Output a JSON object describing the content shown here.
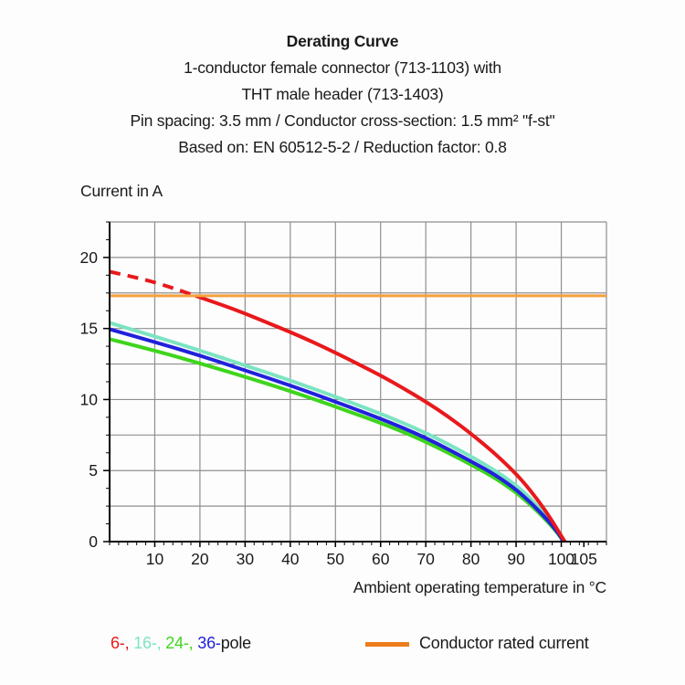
{
  "header": {
    "lines": [
      "Derating Curve",
      "1-conductor female connector (713-1103) with",
      "THT male header (713-1403)",
      "Pin spacing: 3.5 mm / Conductor cross-section: 1.5 mm² \"f-st\"",
      "Based on: EN 60512-5-2 / Reduction factor: 0.8"
    ]
  },
  "chart_data": {
    "type": "line",
    "title": "Derating Curve",
    "xlabel": "Ambient operating temperature in °C",
    "ylabel": "Current in A",
    "xlim": [
      0,
      110
    ],
    "ylim": [
      0,
      22.5
    ],
    "x_tick_labels": [
      10,
      20,
      30,
      40,
      50,
      60,
      70,
      80,
      90,
      100,
      105
    ],
    "y_tick_labels": [
      0,
      5,
      10,
      15,
      20
    ],
    "x_gridlines": [
      10,
      20,
      30,
      40,
      50,
      60,
      70,
      80,
      90,
      100,
      110
    ],
    "y_gridlines": [
      2.5,
      5,
      7.5,
      10,
      12.5,
      15,
      17.5,
      20,
      22.5
    ],
    "x_minor_tick_step": 2,
    "y_minor_tick_step": 1.25,
    "grid_color": "#8f8f8f",
    "axis_color": "#000000",
    "grid_on": true,
    "legend_position": "bottom",
    "rated_current_value": 17.3,
    "series": [
      {
        "name": "6-pole",
        "color": "#e8191c",
        "width": 4,
        "z": 4,
        "dash_until": 19,
        "points": [
          [
            0,
            19.0
          ],
          [
            5,
            18.65
          ],
          [
            10,
            18.25
          ],
          [
            14,
            17.85
          ],
          [
            19,
            17.3
          ],
          [
            25,
            16.65
          ],
          [
            30,
            16.05
          ],
          [
            35,
            15.4
          ],
          [
            40,
            14.75
          ],
          [
            45,
            14.05
          ],
          [
            50,
            13.3
          ],
          [
            55,
            12.5
          ],
          [
            60,
            11.7
          ],
          [
            65,
            10.8
          ],
          [
            70,
            9.85
          ],
          [
            75,
            8.8
          ],
          [
            80,
            7.6
          ],
          [
            84,
            6.55
          ],
          [
            87,
            5.7
          ],
          [
            90,
            4.75
          ],
          [
            92,
            4.05
          ],
          [
            94,
            3.25
          ],
          [
            96,
            2.4
          ],
          [
            98,
            1.45
          ],
          [
            100,
            0.4
          ],
          [
            100.8,
            0
          ]
        ]
      },
      {
        "name": "16-pole",
        "color": "#7ce4c2",
        "width": 4,
        "z": 1,
        "points": [
          [
            0,
            15.4
          ],
          [
            10,
            14.45
          ],
          [
            20,
            13.45
          ],
          [
            30,
            12.4
          ],
          [
            40,
            11.35
          ],
          [
            50,
            10.2
          ],
          [
            60,
            9.0
          ],
          [
            65,
            8.35
          ],
          [
            70,
            7.65
          ],
          [
            75,
            6.85
          ],
          [
            80,
            6.0
          ],
          [
            84,
            5.25
          ],
          [
            87,
            4.65
          ],
          [
            90,
            3.95
          ],
          [
            92,
            3.4
          ],
          [
            94,
            2.75
          ],
          [
            96,
            2.05
          ],
          [
            98,
            1.3
          ],
          [
            100,
            0.4
          ],
          [
            100.5,
            0
          ]
        ]
      },
      {
        "name": "24-pole",
        "color": "#3ed51c",
        "width": 4,
        "z": 2,
        "points": [
          [
            0,
            14.25
          ],
          [
            10,
            13.45
          ],
          [
            20,
            12.55
          ],
          [
            30,
            11.6
          ],
          [
            40,
            10.6
          ],
          [
            50,
            9.5
          ],
          [
            60,
            8.35
          ],
          [
            65,
            7.72
          ],
          [
            70,
            7.02
          ],
          [
            75,
            6.25
          ],
          [
            80,
            5.42
          ],
          [
            84,
            4.72
          ],
          [
            87,
            4.12
          ],
          [
            90,
            3.45
          ],
          [
            92,
            2.92
          ],
          [
            94,
            2.35
          ],
          [
            96,
            1.72
          ],
          [
            98,
            1.05
          ],
          [
            100,
            0.25
          ],
          [
            100.35,
            0
          ]
        ]
      },
      {
        "name": "36-pole",
        "color": "#2121dc",
        "width": 4,
        "z": 3,
        "points": [
          [
            0,
            14.95
          ],
          [
            10,
            14.05
          ],
          [
            20,
            13.1
          ],
          [
            30,
            12.05
          ],
          [
            40,
            11.0
          ],
          [
            50,
            9.85
          ],
          [
            60,
            8.65
          ],
          [
            65,
            8.0
          ],
          [
            70,
            7.3
          ],
          [
            75,
            6.5
          ],
          [
            80,
            5.65
          ],
          [
            84,
            4.95
          ],
          [
            87,
            4.35
          ],
          [
            90,
            3.65
          ],
          [
            92,
            3.1
          ],
          [
            94,
            2.5
          ],
          [
            96,
            1.85
          ],
          [
            98,
            1.15
          ],
          [
            100,
            0.3
          ],
          [
            100.4,
            0
          ]
        ]
      },
      {
        "name": "Conductor rated current",
        "color": "#f5a03c",
        "width": 3,
        "z": 5,
        "points": [
          [
            0,
            17.3
          ],
          [
            110,
            17.3
          ]
        ]
      }
    ]
  },
  "legend": {
    "pole_parts": [
      {
        "text": "6-, ",
        "color": "#e8191c"
      },
      {
        "text": "16-, ",
        "color": "#7ce4c2"
      },
      {
        "text": "24-, ",
        "color": "#3ed51c"
      },
      {
        "text": "36-",
        "color": "#2121dc"
      },
      {
        "text": "pole",
        "color": "#1a1a1a"
      }
    ],
    "rated": {
      "label": "Conductor rated current",
      "swatch_color": "#ee7d1d"
    }
  }
}
